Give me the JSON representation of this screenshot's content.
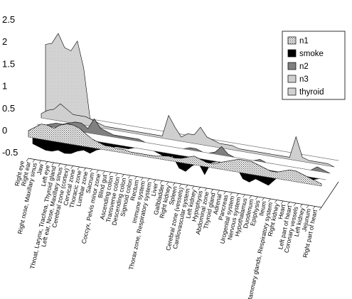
{
  "chart_data": {
    "type": "area",
    "style": "3d-stacked-depth",
    "title": "",
    "xlabel": "",
    "ylabel": "",
    "ylim": [
      -0.5,
      2.5
    ],
    "y_ticks": [
      "2.5",
      "2",
      "1.5",
      "1",
      "0.5",
      "0",
      "-0.5"
    ],
    "grid": false,
    "legend_position": "right",
    "categories": [
      "Right eye",
      "Right ear",
      "Right nose, Maxillary sinus",
      "Jaw",
      "Left eye",
      "Throat, Larynx, Trachea, Thyroid gland",
      "Left ear, Nose, Maxillary sinus",
      "Cerebral zone (cortex)",
      "Cervical zone",
      "Thoracic zone",
      "Lumbar zone",
      "Sacrum",
      "Coccyx, Pelvis minor zone",
      "Blind gut",
      "Ascending colon",
      "Transverse colon",
      "Descending colon",
      "Sigmoid colon",
      "Rectum",
      "Immune system",
      "Thorax zone, Respiratory system",
      "Liver",
      "Gallbladder",
      "Right kidney",
      "Spleen",
      "Cerebral zone (vessels)",
      "Cardiovascular system",
      "Left kidney",
      "Hypophysis",
      "Abdominal zone",
      "Thyroid gland",
      "Adrenal",
      "Pancreas",
      "Urogenital system",
      "Nervous system",
      "Hypothalamus",
      "Duodenum",
      "Epiphysis",
      "Ileum",
      "Mammary glands, Respiratory system",
      "Right kidney",
      "Heart",
      "Left part of heart",
      "Coronary vessels",
      "Left kidney",
      "Jejunum",
      "Right part of heart"
    ],
    "series": [
      {
        "name": "n1",
        "color": "#e6e6e6",
        "pattern": "dots",
        "values": [
          0.15,
          0.25,
          0.35,
          0.35,
          0.3,
          0.4,
          0.45,
          0.45,
          0.4,
          0.3,
          0.2,
          0.15,
          0.1,
          0.1,
          0.08,
          0.08,
          0.05,
          0.05,
          0.05,
          0.05,
          0.05,
          0.08,
          0.1,
          0.08,
          0.1,
          0.15,
          0.2,
          0.15,
          0.1,
          0.1,
          0.15,
          0.2,
          0.25,
          0.3,
          0.3,
          0.3,
          0.25,
          0.2,
          0.15,
          0.15,
          0.2,
          0.25,
          0.25,
          0.2,
          0.15,
          0.1,
          0.05
        ]
      },
      {
        "name": "smoke",
        "color": "#000000",
        "pattern": "solid",
        "values": [
          -0.3,
          -0.35,
          -0.4,
          -0.4,
          -0.35,
          -0.4,
          -0.38,
          -0.3,
          -0.25,
          -0.3,
          -0.2,
          -0.15,
          -0.1,
          -0.05,
          -0.05,
          -0.05,
          0,
          0,
          0,
          0,
          -0.05,
          -0.1,
          -0.05,
          -0.3,
          -0.35,
          -0.2,
          -0.1,
          -0.35,
          -0.05,
          0,
          -0.05,
          -0.1,
          -0.05,
          -0.3,
          -0.35,
          -0.25,
          -0.3,
          -0.35,
          -0.2,
          -0.05,
          -0.05,
          0,
          -0.1,
          -0.1,
          -0.05,
          0,
          0
        ]
      },
      {
        "name": "n2",
        "color": "#808080",
        "pattern": "solid",
        "values": [
          0,
          0,
          0.05,
          0.1,
          0.1,
          0.15,
          0.2,
          0.2,
          0.1,
          0.35,
          0.15,
          0.1,
          0.05,
          0.05,
          0.05,
          0.05,
          0.05,
          0,
          0,
          0,
          0,
          0,
          0,
          0,
          0.05,
          0.05,
          0,
          0,
          0.05,
          0.2,
          0.05,
          0,
          0,
          0,
          0,
          0.05,
          0,
          0,
          0,
          0,
          0,
          0,
          0,
          0,
          0.1,
          0.05,
          0
        ]
      },
      {
        "name": "n3",
        "color": "#cfcfcf",
        "pattern": "solid",
        "values": [
          0.1,
          0.2,
          0.25,
          0.4,
          0.3,
          0.2,
          0.2,
          0.2,
          0.15,
          0.1,
          0.05,
          0.05,
          0.05,
          0.05,
          0.05,
          0.05,
          0.05,
          0.05,
          0.05,
          0.05,
          0.55,
          0.3,
          0.1,
          0.2,
          0.2,
          0.4,
          0.2,
          0.15,
          0.1,
          0.1,
          0.1,
          0.05,
          0.05,
          0.05,
          0.05,
          0.05,
          0.05,
          0.05,
          0.05,
          0.05,
          0.55,
          0.1,
          0.05,
          0.05,
          0.05,
          0.05,
          0
        ]
      },
      {
        "name": "thyroid",
        "color": "#d4d4d4",
        "pattern": "solid-light",
        "values": [
          1.55,
          1.6,
          1.85,
          1.55,
          1.5,
          1.75,
          1.15,
          0,
          0,
          0,
          0,
          0,
          0,
          0,
          0,
          0,
          0,
          0,
          0,
          0,
          0,
          0,
          0,
          0,
          0,
          0,
          0,
          0,
          0,
          0,
          0,
          0,
          0,
          0,
          0,
          0,
          0,
          0,
          0,
          0,
          0,
          0,
          0,
          0,
          0,
          0,
          0
        ]
      }
    ]
  }
}
